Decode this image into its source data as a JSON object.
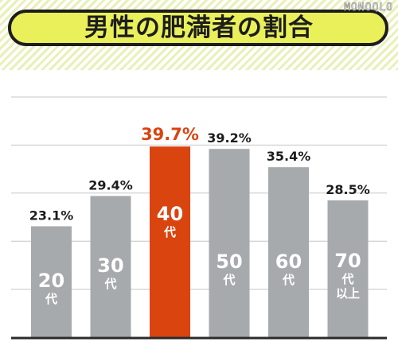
{
  "logo_text": "MONOQLO",
  "chart_data": {
    "type": "bar",
    "title": "男性の肥満者の割合",
    "categories": [
      "20代",
      "30代",
      "40代",
      "50代",
      "60代",
      "70代以上"
    ],
    "category_lines": [
      [
        "20",
        "代"
      ],
      [
        "30",
        "代"
      ],
      [
        "40",
        "代"
      ],
      [
        "50",
        "代"
      ],
      [
        "60",
        "代"
      ],
      [
        "70",
        "代",
        "以上"
      ]
    ],
    "values": [
      23.1,
      29.4,
      39.7,
      39.2,
      35.4,
      28.5
    ],
    "value_labels": [
      "23.1%",
      "29.4%",
      "39.7%",
      "39.2%",
      "35.4%",
      "28.5%"
    ],
    "unit": "%",
    "ylim": [
      0,
      50
    ],
    "highlight_index": 2,
    "grid": true,
    "colors": {
      "bar": "#a7aaad",
      "highlight": "#d9440f",
      "highlight_label": "#d9440f",
      "label": "#1d1d1d",
      "grid": "#c6c6c6",
      "axis": "#2b2b2b"
    }
  }
}
